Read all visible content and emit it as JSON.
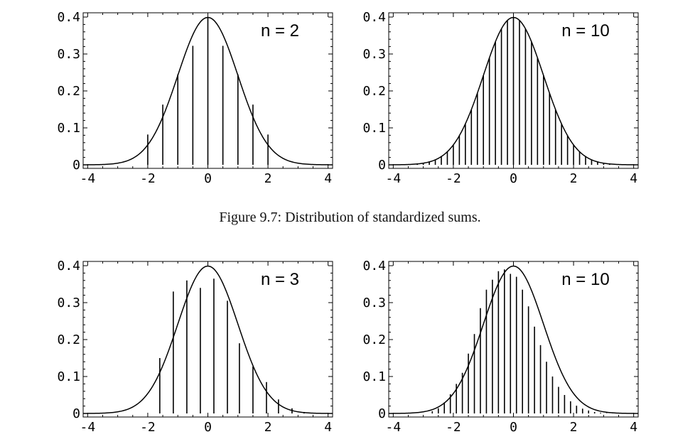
{
  "caption": "Figure 9.7: Distribution of standardized sums.",
  "chart_data": [
    {
      "type": "bar",
      "label": "n = 2",
      "xlim": [
        -4,
        4
      ],
      "ylim": [
        0,
        0.4
      ],
      "xticks": [
        "-4",
        "-2",
        "0",
        "2",
        "4"
      ],
      "yticks": [
        "0",
        "0.1",
        "0.2",
        "0.3",
        "0.4"
      ],
      "curve": "standard normal density",
      "x": [
        -2,
        -1.5,
        -1,
        -0.5,
        0,
        0.5,
        1,
        1.5,
        2
      ],
      "values": [
        0.082,
        0.163,
        0.245,
        0.322,
        0.4,
        0.322,
        0.245,
        0.163,
        0.082
      ]
    },
    {
      "type": "bar",
      "label": "n = 10",
      "xlim": [
        -4,
        4
      ],
      "ylim": [
        0,
        0.4
      ],
      "xticks": [
        "-4",
        "-2",
        "0",
        "2",
        "4"
      ],
      "yticks": [
        "0",
        "0.1",
        "0.2",
        "0.3",
        "0.4"
      ],
      "curve": "standard normal density",
      "x": [
        -3.2,
        -3.0,
        -2.8,
        -2.6,
        -2.4,
        -2.2,
        -2.0,
        -1.8,
        -1.6,
        -1.4,
        -1.2,
        -1.0,
        -0.8,
        -0.6,
        -0.4,
        -0.2,
        0,
        0.2,
        0.4,
        0.6,
        0.8,
        1.0,
        1.2,
        1.4,
        1.6,
        1.8,
        2.0,
        2.2,
        2.4,
        2.6,
        2.8,
        3.0,
        3.2
      ],
      "values": [
        0.002,
        0.004,
        0.008,
        0.014,
        0.022,
        0.035,
        0.054,
        0.079,
        0.111,
        0.15,
        0.194,
        0.242,
        0.29,
        0.333,
        0.368,
        0.39,
        0.398,
        0.39,
        0.368,
        0.333,
        0.29,
        0.242,
        0.194,
        0.15,
        0.111,
        0.079,
        0.054,
        0.035,
        0.022,
        0.014,
        0.008,
        0.004,
        0.002
      ]
    },
    {
      "type": "bar",
      "label": "n = 3",
      "xlim": [
        -4,
        4
      ],
      "ylim": [
        0,
        0.4
      ],
      "xticks": [
        "-4",
        "-2",
        "0",
        "2",
        "4"
      ],
      "yticks": [
        "0",
        "0.1",
        "0.2",
        "0.3",
        "0.4"
      ],
      "curve": "standard normal density",
      "x": [
        -1.6,
        -1.15,
        -0.7,
        -0.25,
        0.2,
        0.65,
        1.05,
        1.5,
        1.95,
        2.35,
        2.8,
        3.2
      ],
      "values": [
        0.15,
        0.33,
        0.36,
        0.34,
        0.365,
        0.305,
        0.19,
        0.127,
        0.085,
        0.038,
        0.014,
        0.004
      ]
    },
    {
      "type": "bar",
      "label": "n = 10",
      "xlim": [
        -4,
        4
      ],
      "ylim": [
        0,
        0.4
      ],
      "xticks": [
        "-4",
        "-2",
        "0",
        "2",
        "4"
      ],
      "yticks": [
        "0",
        "0.1",
        "0.2",
        "0.3",
        "0.4"
      ],
      "curve": "standard normal density",
      "x": [
        -2.7,
        -2.5,
        -2.3,
        -2.1,
        -1.9,
        -1.7,
        -1.5,
        -1.3,
        -1.1,
        -0.9,
        -0.7,
        -0.5,
        -0.3,
        -0.1,
        0.1,
        0.3,
        0.5,
        0.7,
        0.9,
        1.1,
        1.3,
        1.5,
        1.7,
        1.9,
        2.1,
        2.3,
        2.5,
        2.7,
        2.9,
        3.1,
        3.3,
        3.5
      ],
      "values": [
        0.006,
        0.014,
        0.03,
        0.052,
        0.08,
        0.11,
        0.162,
        0.215,
        0.285,
        0.335,
        0.362,
        0.385,
        0.39,
        0.378,
        0.37,
        0.335,
        0.29,
        0.235,
        0.185,
        0.14,
        0.1,
        0.072,
        0.05,
        0.033,
        0.021,
        0.013,
        0.008,
        0.004,
        0.002,
        0.001,
        0.0005,
        0.0002
      ]
    }
  ]
}
